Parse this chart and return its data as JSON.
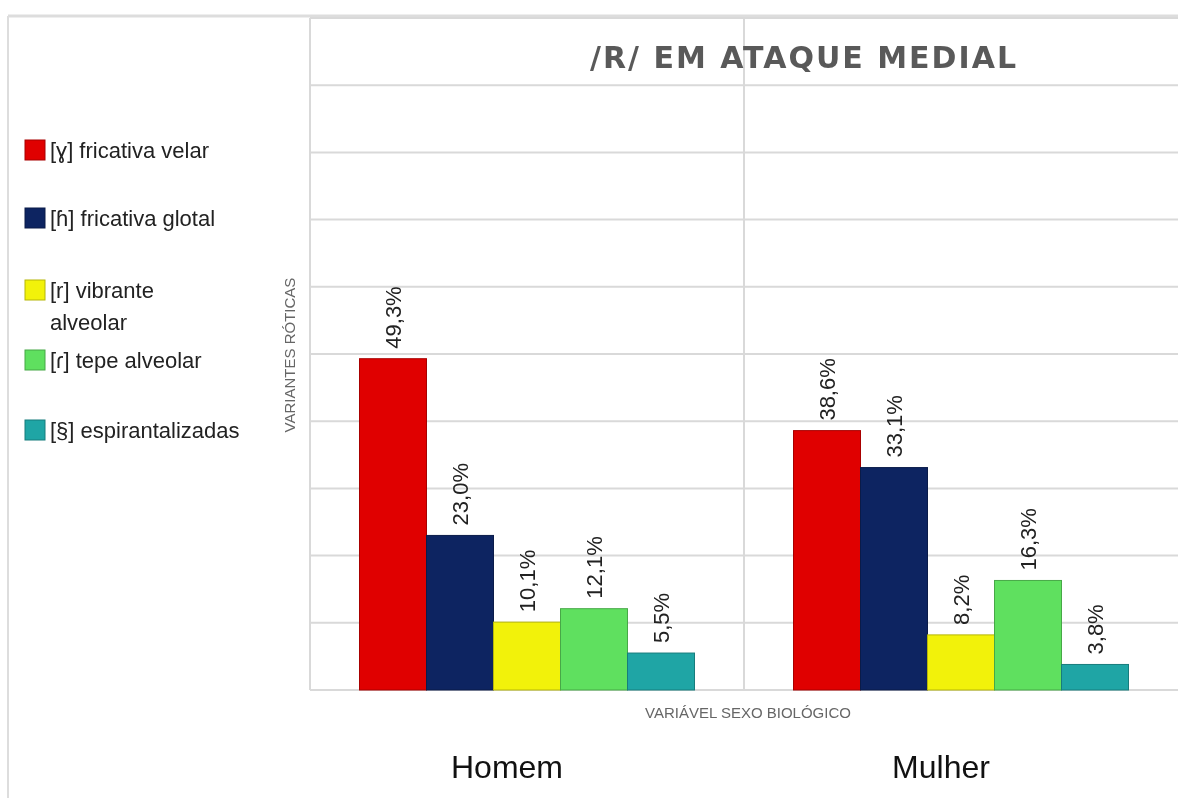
{
  "chart_data": {
    "type": "bar",
    "title": "/R/ EM ATAQUE MEDIAL",
    "xlabel": "VARIÁVEL SEXO BIOLÓGICO",
    "ylabel": "VARIANTES RÓTICAS",
    "categories": [
      "Homem",
      "Mulher"
    ],
    "series": [
      {
        "name": "[ɣ] fricativa velar",
        "color": "#e00000",
        "values": [
          49.3,
          38.6
        ],
        "value_labels": [
          "49,3%",
          "38,6%"
        ]
      },
      {
        "name": "[ɦ] fricativa glotal",
        "color": "#0d2461",
        "values": [
          23.0,
          33.1
        ],
        "value_labels": [
          "23,0%",
          "33,1%"
        ]
      },
      {
        "name": "[r] vibrante alveolar",
        "color": "#f2f20a",
        "values": [
          10.1,
          8.2
        ],
        "value_labels": [
          "10,1%",
          "8,2%"
        ]
      },
      {
        "name": "[ɾ] tepe alveolar",
        "color": "#5fe05f",
        "values": [
          12.1,
          16.3
        ],
        "value_labels": [
          "12,1%",
          "16,3%"
        ]
      },
      {
        "name": "[§] espirantalizadas",
        "color": "#1fa5a5",
        "values": [
          5.5,
          3.8
        ],
        "value_labels": [
          "5,5%",
          "3,8%"
        ]
      }
    ],
    "ylim": [
      0,
      100
    ],
    "yticks": [
      {
        "value": 0,
        "label": null
      },
      {
        "value": 10,
        "label": null
      },
      {
        "value": 20,
        "label": null
      },
      {
        "value": 30,
        "label": null
      },
      {
        "value": 40,
        "label": null
      },
      {
        "value": 50,
        "label": null
      },
      {
        "value": 60,
        "label": null
      },
      {
        "value": 70,
        "label": null
      },
      {
        "value": 80,
        "label": null
      },
      {
        "value": 90,
        "label": null
      },
      {
        "value": 100,
        "label": null
      }
    ],
    "grid": "y",
    "legend": "left",
    "tick_labels": "x"
  }
}
